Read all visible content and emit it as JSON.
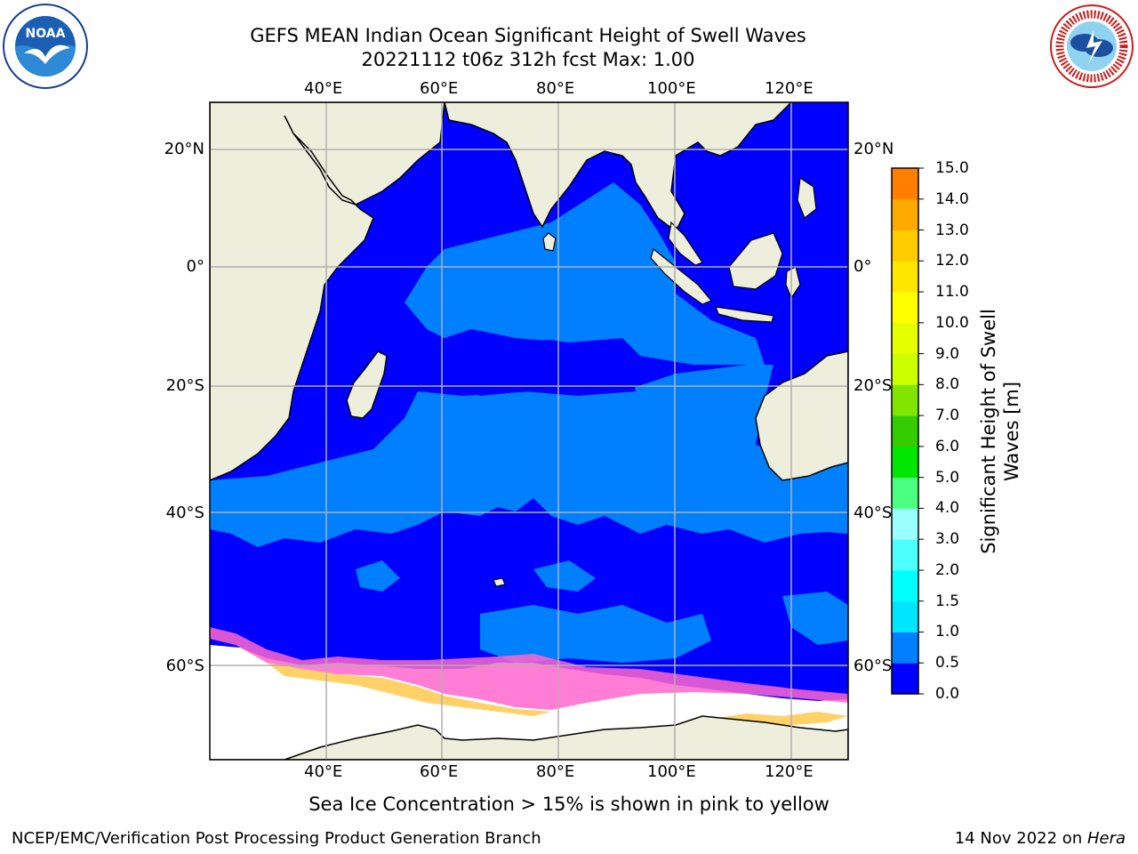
{
  "title_line1": "GEFS MEAN Indian Ocean Significant Height of Swell Waves",
  "title_line2": "20221112 t06z 312h fcst   Max: 1.00",
  "lon_ticks": [
    "40°E",
    "60°E",
    "80°E",
    "100°E",
    "120°E"
  ],
  "lat_ticks": [
    "20°N",
    "0°",
    "20°S",
    "40°S",
    "60°S"
  ],
  "colorbar": {
    "label_line1": "Significant Height of Swell",
    "label_line2": "Waves [m]",
    "ticks": [
      "15.0",
      "14.0",
      "13.0",
      "12.0",
      "11.0",
      "10.0",
      "9.0",
      "8.0",
      "7.0",
      "6.0",
      "5.0",
      "4.0",
      "3.0",
      "2.0",
      "1.5",
      "1.0",
      "0.5",
      "0.0"
    ],
    "colors": [
      "#0000ff",
      "#0080ff",
      "#00e5ff",
      "#00ffff",
      "#4dffff",
      "#99ffff",
      "#4dff80",
      "#00e600",
      "#33cc00",
      "#80e600",
      "#ccff00",
      "#e6ff00",
      "#ffff00",
      "#ffe600",
      "#ffcc00",
      "#ffaa00",
      "#ff8000",
      "#ff5500",
      "#ff2a00",
      "#ff0000"
    ]
  },
  "ice_note": "Sea Ice Concentration > 15% is shown in pink to yellow",
  "footer_left": "NCEP/EMC/Verification Post Processing Product Generation Branch",
  "footer_right_date": "14 Nov 2022 on ",
  "footer_right_host": "Hera",
  "logo_left": {
    "icon": "noaa-logo",
    "text": "NOAA"
  },
  "logo_right": {
    "icon": "national-weather-service-logo"
  },
  "map_colors": {
    "ocean_low": "#0000ff",
    "ocean_mid": "#0080ff",
    "land": "#eeeedd",
    "ice": "#ff66cc",
    "grid": "#b0b0b0"
  }
}
